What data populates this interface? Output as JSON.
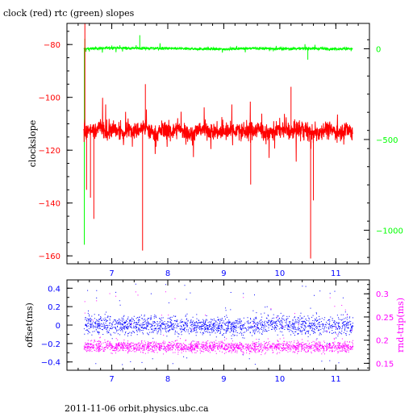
{
  "title": "clock (red) rtc (green) slopes",
  "footer": "2011-11-06 orbit.physics.ubc.ca",
  "colors": {
    "clock": "#ff0000",
    "rtc": "#00ff00",
    "offset": "#0000ff",
    "rndtrip": "#ff00ff",
    "axis_top_left": "#ff0000",
    "axis_top_right": "#00ff00",
    "axis_bottom_left": "#0000ff",
    "axis_bottom_right": "#ff00ff",
    "frame": "#000000"
  },
  "chart_data": [
    {
      "type": "line",
      "title": "clock (red) rtc (green) slopes",
      "xlabel": "",
      "ylabel": "clockslope",
      "y2label": "",
      "xlim": [
        6.2,
        11.6
      ],
      "ylim": [
        -163,
        -72
      ],
      "y2lim": [
        -1185,
        140
      ],
      "x_ticks": [
        7,
        8,
        9,
        10,
        11
      ],
      "x_tick_labels": [
        "7",
        "8",
        "9",
        "10",
        "11"
      ],
      "y_ticks": [
        -80,
        -100,
        -120,
        -140,
        -160
      ],
      "y_tick_labels": [
        "−80",
        "−100",
        "−120",
        "−140",
        "−160"
      ],
      "y2_ticks": [
        0,
        -500,
        -1000
      ],
      "y2_tick_labels": [
        "0",
        "−500",
        "−1000"
      ],
      "grid": false,
      "series": [
        {
          "name": "clock",
          "axis": "left",
          "x": [
            6.5,
            6.55,
            6.6,
            6.7,
            6.8,
            6.9,
            7.0,
            7.1,
            7.2,
            7.3,
            7.4,
            7.5,
            7.6,
            7.7,
            7.8,
            7.9,
            8.0,
            8.2,
            8.4,
            8.6,
            8.8,
            9.0,
            9.2,
            9.4,
            9.6,
            9.8,
            10.0,
            10.2,
            10.4,
            10.6,
            10.8,
            11.0,
            11.2,
            11.3
          ],
          "values": [
            -112,
            -114,
            -112,
            -113,
            -111,
            -114,
            -112,
            -113,
            -114,
            -111,
            -113,
            -112,
            -112,
            -113,
            -114,
            -112,
            -113,
            -112,
            -114,
            -112,
            -113,
            -113,
            -112,
            -113,
            -112,
            -114,
            -112,
            -113,
            -112,
            -114,
            -112,
            -113,
            -112,
            -113
          ],
          "spikes": [
            {
              "x": 6.52,
              "y": -72
            },
            {
              "x": 6.55,
              "y": -135
            },
            {
              "x": 6.62,
              "y": -138
            },
            {
              "x": 6.68,
              "y": -146
            },
            {
              "x": 7.55,
              "y": -158
            },
            {
              "x": 7.6,
              "y": -95
            },
            {
              "x": 9.48,
              "y": -133
            },
            {
              "x": 10.2,
              "y": -96
            },
            {
              "x": 10.55,
              "y": -161
            },
            {
              "x": 10.6,
              "y": -139
            }
          ]
        },
        {
          "name": "rtc",
          "axis": "right",
          "x": [
            6.5,
            7.0,
            7.5,
            8.0,
            8.5,
            9.0,
            9.5,
            10.0,
            10.5,
            11.0,
            11.3
          ],
          "values": [
            0,
            5,
            3,
            2,
            0,
            -2,
            3,
            0,
            2,
            0,
            1
          ],
          "spikes": [
            {
              "x": 6.51,
              "y": -1080
            },
            {
              "x": 6.52,
              "y": 55
            },
            {
              "x": 7.5,
              "y": 75
            },
            {
              "x": 10.5,
              "y": -60
            }
          ]
        }
      ]
    },
    {
      "type": "scatter",
      "xlabel": "",
      "ylabel": "offset(ms)",
      "y2label": "rnd-trip(ms)",
      "xlim": [
        6.2,
        11.6
      ],
      "ylim": [
        -0.49,
        0.49
      ],
      "y2lim": [
        0.135,
        0.33
      ],
      "x_ticks": [
        7,
        8,
        9,
        10,
        11
      ],
      "x_tick_labels": [
        "7",
        "8",
        "9",
        "10",
        "11"
      ],
      "y_ticks": [
        0.4,
        0.2,
        0,
        -0.2,
        -0.4
      ],
      "y_tick_labels": [
        "0.4",
        "0.2",
        "0",
        "−0.2",
        "−0.4"
      ],
      "y2_ticks": [
        0.3,
        0.25,
        0.2,
        0.15
      ],
      "y2_tick_labels": [
        "0.3",
        "0.25",
        "0.2",
        "0.15"
      ],
      "grid": false,
      "series": [
        {
          "name": "offset",
          "axis": "left",
          "x": [
            6.5,
            7.0,
            7.5,
            8.0,
            8.5,
            9.0,
            9.5,
            10.0,
            10.5,
            11.0,
            11.3
          ],
          "center": [
            0.02,
            0.0,
            0.01,
            0.0,
            0.0,
            -0.02,
            0.0,
            0.01,
            0.0,
            0.0,
            0.0
          ],
          "spread": [
            0.2,
            0.2,
            0.18,
            0.17,
            0.16,
            0.17,
            0.18,
            0.19,
            0.2,
            0.19,
            0.19
          ]
        },
        {
          "name": "rnd-trip",
          "axis": "right",
          "x": [
            6.5,
            7.0,
            7.5,
            8.0,
            8.5,
            9.0,
            9.5,
            10.0,
            10.5,
            11.0,
            11.3
          ],
          "center": [
            0.187,
            0.188,
            0.186,
            0.186,
            0.187,
            0.186,
            0.186,
            0.187,
            0.186,
            0.186,
            0.187
          ],
          "spread": [
            0.025,
            0.025,
            0.024,
            0.024,
            0.024,
            0.024,
            0.024,
            0.024,
            0.024,
            0.024,
            0.024
          ]
        }
      ]
    }
  ]
}
